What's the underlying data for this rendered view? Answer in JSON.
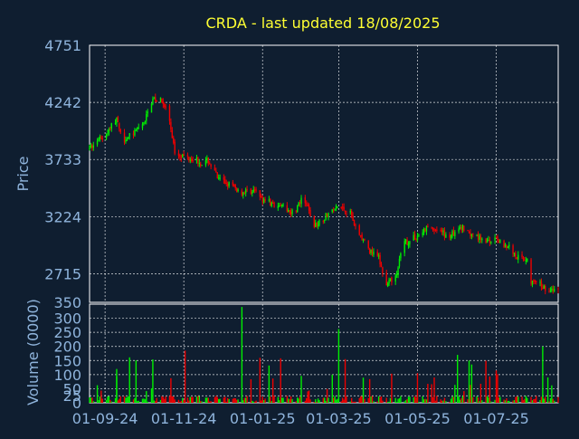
{
  "chart_data": {
    "type": "candlestick",
    "title": "CRDA - last updated 18/08/2025",
    "price_panel": {
      "ylabel": "Price",
      "ylim": [
        2460,
        4751
      ],
      "y_ticks": [
        2715,
        3224,
        3733,
        4242,
        4751
      ],
      "volume_panel_max_label": 350,
      "grid": true
    },
    "volume_panel": {
      "ylabel": "Volume (0000)",
      "ylim": [
        0,
        350
      ],
      "y_ticks": [
        0,
        25,
        50,
        100,
        150,
        200,
        250,
        300,
        350
      ],
      "grid": true
    },
    "x_axis": {
      "type": "date",
      "range": [
        "2024-08-20",
        "2025-08-18"
      ],
      "ticks": [
        {
          "date": "2024-09-01",
          "label": "01-09-24"
        },
        {
          "date": "2024-11-01",
          "label": "01-11-24"
        },
        {
          "date": "2025-01-01",
          "label": "01-01-25"
        },
        {
          "date": "2025-03-01",
          "label": "01-03-25"
        },
        {
          "date": "2025-05-01",
          "label": "01-05-25"
        },
        {
          "date": "2025-07-01",
          "label": "01-07-25"
        }
      ]
    },
    "colors": {
      "up": "#00ee00",
      "down": "#ee0000",
      "title": "#ffff33",
      "axis": "#8fb4dc",
      "background": "#0f1e30"
    },
    "price_series": [
      [
        "2024-08-20",
        3830
      ],
      [
        "2024-09-01",
        3950
      ],
      [
        "2024-09-10",
        4100
      ],
      [
        "2024-09-14",
        3900
      ],
      [
        "2024-09-25",
        3980
      ],
      [
        "2024-10-01",
        4050
      ],
      [
        "2024-10-08",
        4290
      ],
      [
        "2024-10-15",
        4250
      ],
      [
        "2024-10-20",
        4150
      ],
      [
        "2024-10-25",
        3800
      ],
      [
        "2024-11-01",
        3760
      ],
      [
        "2024-11-10",
        3740
      ],
      [
        "2024-11-15",
        3700
      ],
      [
        "2024-11-20",
        3720
      ],
      [
        "2024-11-28",
        3550
      ],
      [
        "2024-12-05",
        3520
      ],
      [
        "2024-12-15",
        3440
      ],
      [
        "2024-12-25",
        3460
      ],
      [
        "2025-01-01",
        3380
      ],
      [
        "2025-01-10",
        3330
      ],
      [
        "2025-01-20",
        3290
      ],
      [
        "2025-01-25",
        3260
      ],
      [
        "2025-02-01",
        3380
      ],
      [
        "2025-02-05",
        3300
      ],
      [
        "2025-02-10",
        3140
      ],
      [
        "2025-02-20",
        3240
      ],
      [
        "2025-03-01",
        3320
      ],
      [
        "2025-03-10",
        3260
      ],
      [
        "2025-03-15",
        3100
      ],
      [
        "2025-03-25",
        2920
      ],
      [
        "2025-04-01",
        2850
      ],
      [
        "2025-04-07",
        2600
      ],
      [
        "2025-04-15",
        2720
      ],
      [
        "2025-04-20",
        2980
      ],
      [
        "2025-05-01",
        3050
      ],
      [
        "2025-05-10",
        3140
      ],
      [
        "2025-05-25",
        3050
      ],
      [
        "2025-06-05",
        3120
      ],
      [
        "2025-06-15",
        3060
      ],
      [
        "2025-06-25",
        3000
      ],
      [
        "2025-07-01",
        3020
      ],
      [
        "2025-07-10",
        2960
      ],
      [
        "2025-07-18",
        2860
      ],
      [
        "2025-07-25",
        2850
      ],
      [
        "2025-07-28",
        2640
      ],
      [
        "2025-08-05",
        2610
      ],
      [
        "2025-08-12",
        2560
      ],
      [
        "2025-08-18",
        2580
      ]
    ]
  }
}
